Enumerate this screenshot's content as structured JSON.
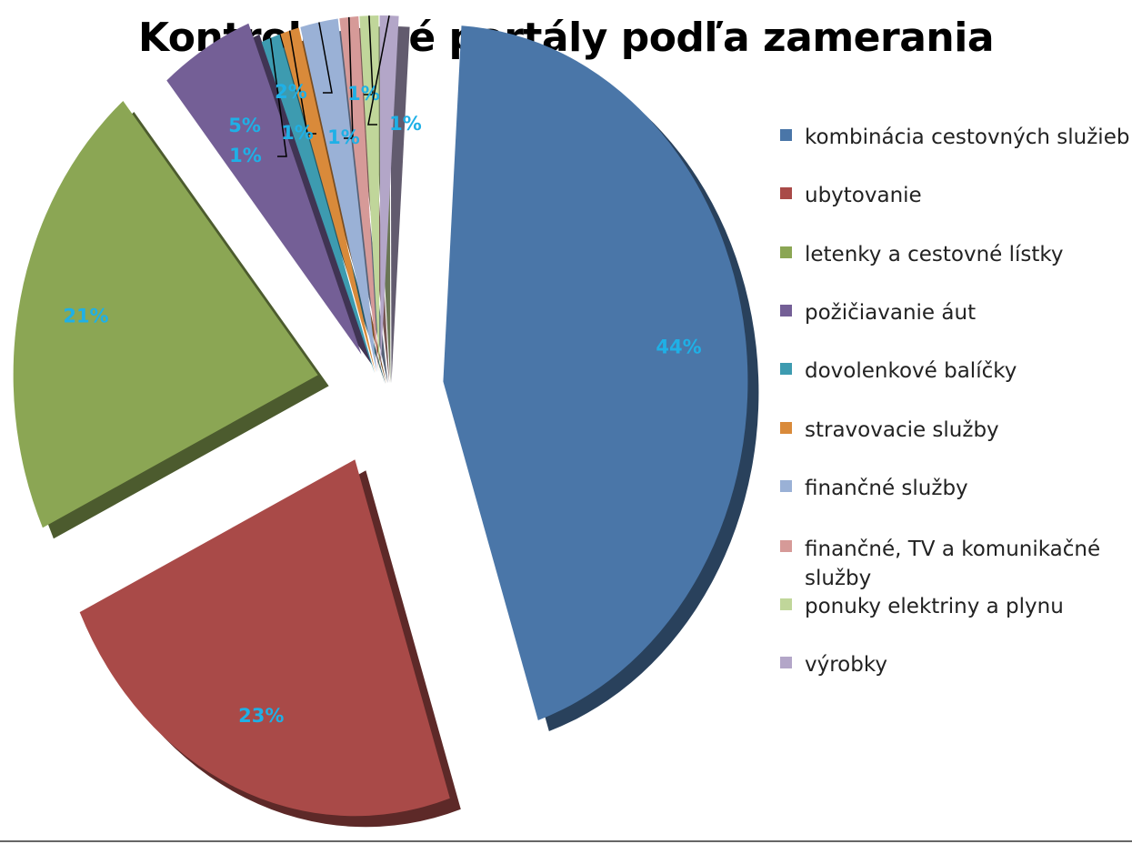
{
  "chart_data": {
    "type": "pie",
    "title": "Kontrolované portály podľa zamerania",
    "legend_position": "right",
    "slices": [
      {
        "label": "kombinácia cestovných služieb",
        "value": 44,
        "display": "44%",
        "color": "#4a76a8"
      },
      {
        "label": "ubytovanie",
        "value": 23,
        "display": "23%",
        "color": "#a94a48"
      },
      {
        "label": "letenky a cestovné lístky",
        "value": 21,
        "display": "21%",
        "color": "#8ba654"
      },
      {
        "label": "požičiavanie áut",
        "value": 5,
        "display": "5%",
        "color": "#745f96"
      },
      {
        "label": "dovolenkové balíčky",
        "value": 1,
        "display": "1%",
        "color": "#3d9bb0"
      },
      {
        "label": "stravovacie služby",
        "value": 1,
        "display": "1%",
        "color": "#d98a3a"
      },
      {
        "label": "finančné služby",
        "value": 2,
        "display": "2%",
        "color": "#9ab1d6"
      },
      {
        "label": "finančné, TV a komunikačné služby",
        "value": 1,
        "display": "1%",
        "color": "#d69a98"
      },
      {
        "label": "ponuky elektriny a plynu",
        "value": 1,
        "display": "1%",
        "color": "#c0d69a"
      },
      {
        "label": "výrobky",
        "value": 1,
        "display": "1%",
        "color": "#b3a6c8"
      }
    ],
    "label_color": "#1fb0e6"
  }
}
